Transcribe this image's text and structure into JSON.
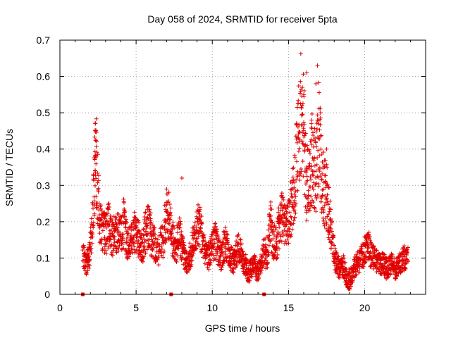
{
  "chart_data": {
    "type": "scatter",
    "title": "Day 058 of 2024, SRMTID for receiver 5pta",
    "xlabel": "GPS time / hours",
    "ylabel": "SRMTID / TECUs",
    "xlim": [
      0,
      24
    ],
    "ylim": [
      0,
      0.7
    ],
    "xticks": [
      0,
      5,
      10,
      15,
      20
    ],
    "xtick_labels": [
      "0",
      "5",
      "10",
      "15",
      "20"
    ],
    "yticks": [
      0,
      0.1,
      0.2,
      0.3,
      0.4,
      0.5,
      0.6,
      0.7
    ],
    "ytick_labels": [
      "0",
      "0.1",
      "0.2",
      "0.3",
      "0.4",
      "0.5",
      "0.6",
      "0.7"
    ],
    "grid": true,
    "marker": "+",
    "color": "#e00000",
    "series": [
      {
        "name": "SRMTID",
        "x": [
          1.5,
          1.7,
          1.9,
          2.1,
          2.3,
          2.4,
          2.6,
          2.8,
          3.0,
          3.2,
          3.4,
          3.6,
          3.8,
          4.0,
          4.2,
          4.4,
          4.6,
          4.8,
          5.0,
          5.2,
          5.4,
          5.6,
          5.8,
          6.0,
          6.2,
          6.5,
          6.8,
          7.0,
          7.2,
          7.4,
          7.6,
          7.8,
          8.0,
          8.2,
          8.4,
          8.6,
          8.8,
          9.0,
          9.2,
          9.4,
          9.6,
          9.8,
          10.0,
          10.2,
          10.4,
          10.6,
          10.8,
          11.0,
          11.2,
          11.4,
          11.6,
          11.8,
          12.0,
          12.2,
          12.4,
          12.6,
          12.8,
          13.0,
          13.2,
          13.4,
          13.6,
          13.8,
          14.0,
          14.2,
          14.4,
          14.6,
          14.8,
          15.0,
          15.2,
          15.4,
          15.6,
          15.8,
          16.0,
          16.2,
          16.4,
          16.6,
          16.8,
          17.0,
          17.2,
          17.4,
          17.6,
          17.8,
          18.0,
          18.2,
          18.4,
          18.6,
          18.8,
          19.0,
          19.2,
          19.4,
          19.6,
          19.8,
          20.0,
          20.2,
          20.4,
          20.6,
          20.8,
          21.0,
          21.2,
          21.4,
          21.6,
          21.8,
          22.0,
          22.2,
          22.4,
          22.6,
          22.8
        ],
        "y": [
          0.12,
          0.08,
          0.1,
          0.17,
          0.35,
          0.36,
          0.2,
          0.18,
          0.16,
          0.19,
          0.15,
          0.17,
          0.18,
          0.16,
          0.2,
          0.15,
          0.14,
          0.18,
          0.16,
          0.15,
          0.12,
          0.17,
          0.2,
          0.16,
          0.14,
          0.12,
          0.16,
          0.22,
          0.21,
          0.15,
          0.12,
          0.17,
          0.14,
          0.1,
          0.09,
          0.12,
          0.15,
          0.19,
          0.18,
          0.14,
          0.12,
          0.1,
          0.13,
          0.15,
          0.12,
          0.1,
          0.14,
          0.13,
          0.1,
          0.09,
          0.12,
          0.13,
          0.09,
          0.08,
          0.06,
          0.07,
          0.08,
          0.06,
          0.08,
          0.12,
          0.1,
          0.2,
          0.15,
          0.14,
          0.19,
          0.21,
          0.18,
          0.2,
          0.25,
          0.3,
          0.4,
          0.5,
          0.45,
          0.3,
          0.35,
          0.38,
          0.33,
          0.45,
          0.3,
          0.28,
          0.25,
          0.18,
          0.1,
          0.08,
          0.07,
          0.08,
          0.05,
          0.04,
          0.06,
          0.08,
          0.09,
          0.1,
          0.12,
          0.14,
          0.11,
          0.1,
          0.09,
          0.08,
          0.09,
          0.07,
          0.08,
          0.09,
          0.07,
          0.08,
          0.09,
          0.1,
          0.11
        ],
        "outliers": [
          [
            2.3,
            0.38
          ],
          [
            2.2,
            0.33
          ],
          [
            7.0,
            0.29
          ],
          [
            8.0,
            0.32
          ],
          [
            16.0,
            0.55
          ],
          [
            16.2,
            0.61
          ],
          [
            16.9,
            0.63
          ],
          [
            16.8,
            0.58
          ],
          [
            15.9,
            0.52
          ],
          [
            16.5,
            0.47
          ],
          [
            17.1,
            0.5
          ],
          [
            17.5,
            0.4
          ]
        ]
      }
    ],
    "gap_markers_x": [
      1.5,
      7.3,
      13.4
    ]
  }
}
